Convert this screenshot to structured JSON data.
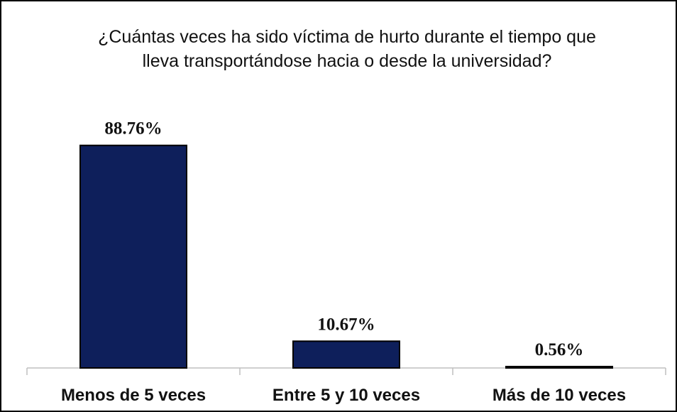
{
  "chart_data": {
    "type": "bar",
    "title": "¿Cuántas veces ha sido víctima de hurto durante el tiempo que lleva transportándose hacia o desde la universidad?",
    "categories": [
      "Menos de 5 veces",
      "Entre 5 y 10 veces",
      "Más de 10 veces"
    ],
    "values": [
      88.76,
      10.67,
      0.56
    ],
    "value_labels": [
      "88.76%",
      "10.67%",
      "0.56%"
    ],
    "color": "#0e1f5b",
    "ylim": [
      0,
      100
    ]
  }
}
